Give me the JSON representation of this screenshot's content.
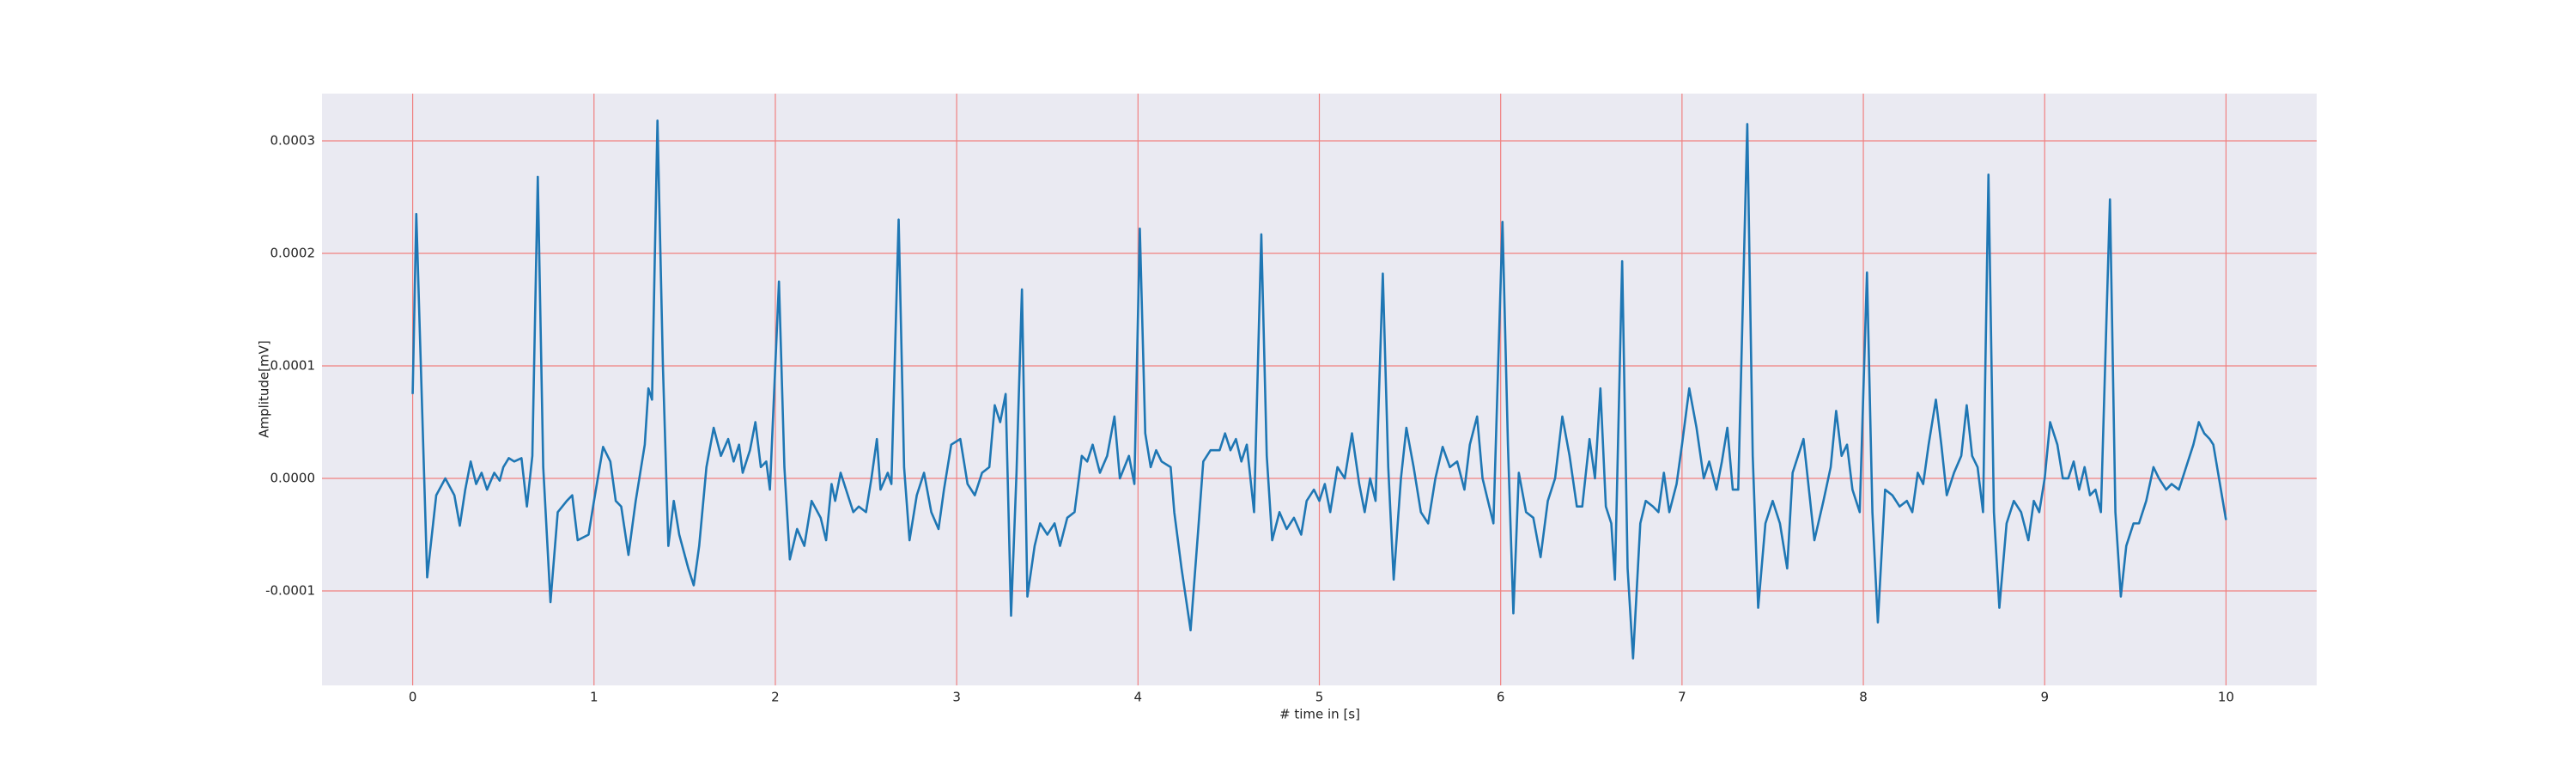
{
  "chart_data": {
    "type": "line",
    "xlabel": "# time in [s]",
    "ylabel": "Amplitude[mV]",
    "color": "#1f77b4",
    "grid": true,
    "grid_color": "#f08080",
    "background": "#eaeaf2",
    "xlim": [
      -0.5,
      10.5
    ],
    "ylim": [
      -0.000184,
      0.000342
    ],
    "xticks": [
      0,
      1,
      2,
      3,
      4,
      5,
      6,
      7,
      8,
      9,
      10
    ],
    "yticks": [
      {
        "value": -0.0001,
        "label": "-0.0001"
      },
      {
        "value": 0,
        "label": "0.0000"
      },
      {
        "value": 0.0001,
        "label": "0.0001"
      },
      {
        "value": 0.0002,
        "label": "0.0002"
      },
      {
        "value": 0.0003,
        "label": "0.0003"
      }
    ],
    "x": [
      0,
      0.02,
      0.08,
      0.13,
      0.18,
      0.23,
      0.26,
      0.29,
      0.32,
      0.35,
      0.38,
      0.41,
      0.45,
      0.48,
      0.5,
      0.53,
      0.56,
      0.6,
      0.63,
      0.66,
      0.69,
      0.72,
      0.76,
      0.8,
      0.85,
      0.88,
      0.91,
      0.97,
      1.0,
      1.05,
      1.09,
      1.12,
      1.15,
      1.19,
      1.23,
      1.28,
      1.3,
      1.32,
      1.35,
      1.38,
      1.41,
      1.44,
      1.47,
      1.52,
      1.55,
      1.58,
      1.62,
      1.66,
      1.7,
      1.74,
      1.77,
      1.8,
      1.82,
      1.86,
      1.89,
      1.92,
      1.95,
      1.97,
      2.02,
      2.05,
      2.08,
      2.12,
      2.16,
      2.2,
      2.25,
      2.28,
      2.31,
      2.33,
      2.36,
      2.4,
      2.43,
      2.46,
      2.5,
      2.53,
      2.56,
      2.58,
      2.62,
      2.64,
      2.68,
      2.71,
      2.74,
      2.78,
      2.82,
      2.86,
      2.9,
      2.93,
      2.97,
      3.02,
      3.06,
      3.1,
      3.14,
      3.18,
      3.21,
      3.24,
      3.27,
      3.3,
      3.33,
      3.36,
      3.39,
      3.43,
      3.46,
      3.5,
      3.54,
      3.57,
      3.61,
      3.65,
      3.69,
      3.72,
      3.75,
      3.79,
      3.83,
      3.87,
      3.9,
      3.95,
      3.98,
      4.01,
      4.04,
      4.07,
      4.1,
      4.13,
      4.18,
      4.2,
      4.24,
      4.29,
      4.33,
      4.36,
      4.4,
      4.45,
      4.48,
      4.51,
      4.54,
      4.57,
      4.6,
      4.64,
      4.68,
      4.71,
      4.74,
      4.78,
      4.82,
      4.86,
      4.9,
      4.93,
      4.97,
      5.0,
      5.03,
      5.06,
      5.1,
      5.14,
      5.18,
      5.22,
      5.25,
      5.28,
      5.31,
      5.35,
      5.38,
      5.41,
      5.45,
      5.48,
      5.52,
      5.56,
      5.6,
      5.64,
      5.68,
      5.72,
      5.76,
      5.8,
      5.83,
      5.87,
      5.9,
      5.93,
      5.96,
      6.01,
      6.04,
      6.07,
      6.1,
      6.14,
      6.18,
      6.22,
      6.26,
      6.3,
      6.34,
      6.38,
      6.42,
      6.45,
      6.49,
      6.52,
      6.55,
      6.58,
      6.61,
      6.63,
      6.67,
      6.7,
      6.73,
      6.77,
      6.8,
      6.84,
      6.87,
      6.9,
      6.93,
      6.97,
      7.0,
      7.04,
      7.08,
      7.12,
      7.15,
      7.19,
      7.22,
      7.25,
      7.28,
      7.31,
      7.36,
      7.39,
      7.42,
      7.46,
      7.5,
      7.54,
      7.58,
      7.61,
      7.64,
      7.67,
      7.7,
      7.73,
      7.78,
      7.82,
      7.85,
      7.88,
      7.91,
      7.94,
      7.98,
      8.02,
      8.05,
      8.08,
      8.12,
      8.16,
      8.2,
      8.24,
      8.27,
      8.3,
      8.33,
      8.36,
      8.4,
      8.43,
      8.46,
      8.5,
      8.54,
      8.57,
      8.6,
      8.63,
      8.66,
      8.69,
      8.72,
      8.75,
      8.79,
      8.83,
      8.87,
      8.91,
      8.94,
      8.97,
      9.0,
      9.03,
      9.07,
      9.1,
      9.13,
      9.16,
      9.19,
      9.22,
      9.25,
      9.28,
      9.31,
      9.36,
      9.39,
      9.42,
      9.45,
      9.49,
      9.52,
      9.56,
      9.6,
      9.63,
      9.67,
      9.7,
      9.74,
      9.78,
      9.82,
      9.85,
      9.88,
      9.91,
      9.93,
      10.0
    ],
    "values": [
      7.5e-05,
      0.000235,
      -8.8e-05,
      -1.5e-05,
      0,
      -1.5e-05,
      -4.2e-05,
      -1e-05,
      1.5e-05,
      -5e-06,
      5e-06,
      -1e-05,
      5e-06,
      -2e-06,
      1e-05,
      1.8e-05,
      1.5e-05,
      1.8e-05,
      -2.5e-05,
      2e-05,
      0.000268,
      1e-05,
      -0.00011,
      -3e-05,
      -2e-05,
      -1.5e-05,
      -5.5e-05,
      -5e-05,
      -2e-05,
      2.8e-05,
      1.5e-05,
      -2e-05,
      -2.5e-05,
      -6.8e-05,
      -2e-05,
      3e-05,
      8e-05,
      7e-05,
      0.000318,
      0.0001,
      -6e-05,
      -2e-05,
      -5e-05,
      -8e-05,
      -9.5e-05,
      -6e-05,
      1e-05,
      4.5e-05,
      2e-05,
      3.5e-05,
      1.5e-05,
      3e-05,
      5e-06,
      2.5e-05,
      5e-05,
      1e-05,
      1.5e-05,
      -1e-05,
      0.000175,
      1e-05,
      -7.2e-05,
      -4.5e-05,
      -6e-05,
      -2e-05,
      -3.5e-05,
      -5.5e-05,
      -5e-06,
      -2e-05,
      5e-06,
      -1.5e-05,
      -3e-05,
      -2.5e-05,
      -3e-05,
      0,
      3.5e-05,
      -1e-05,
      5e-06,
      -5e-06,
      0.00023,
      1e-05,
      -5.5e-05,
      -1.5e-05,
      5e-06,
      -3e-05,
      -4.5e-05,
      -1e-05,
      3e-05,
      3.5e-05,
      -5e-06,
      -1.5e-05,
      5e-06,
      1e-05,
      6.5e-05,
      5e-05,
      7.5e-05,
      -0.000122,
      5e-06,
      0.000168,
      -0.000105,
      -6e-05,
      -4e-05,
      -5e-05,
      -4e-05,
      -6e-05,
      -3.5e-05,
      -3e-05,
      2e-05,
      1.5e-05,
      3e-05,
      5e-06,
      2e-05,
      5.5e-05,
      0,
      2e-05,
      -5e-06,
      0.000222,
      4e-05,
      1e-05,
      2.5e-05,
      1.5e-05,
      1e-05,
      -3e-05,
      -8e-05,
      -0.000135,
      -5e-05,
      1.5e-05,
      2.5e-05,
      2.5e-05,
      4e-05,
      2.5e-05,
      3.5e-05,
      1.5e-05,
      3e-05,
      -3e-05,
      0.000217,
      2e-05,
      -5.5e-05,
      -3e-05,
      -4.5e-05,
      -3.5e-05,
      -5e-05,
      -2e-05,
      -1e-05,
      -2e-05,
      -5e-06,
      -3e-05,
      1e-05,
      0,
      4e-05,
      -5e-06,
      -3e-05,
      0,
      -2e-05,
      0.000182,
      1e-05,
      -9e-05,
      0,
      4.5e-05,
      1e-05,
      -3e-05,
      -4e-05,
      0,
      2.8e-05,
      1e-05,
      1.5e-05,
      -1e-05,
      3e-05,
      5.5e-05,
      0,
      -2e-05,
      -4e-05,
      0.000228,
      3e-05,
      -0.00012,
      5e-06,
      -3e-05,
      -3.5e-05,
      -7e-05,
      -2e-05,
      0,
      5.5e-05,
      2e-05,
      -2.5e-05,
      -2.5e-05,
      3.5e-05,
      0,
      8e-05,
      -2.5e-05,
      -4e-05,
      -9e-05,
      0.000193,
      -8e-05,
      -0.00016,
      -4e-05,
      -2e-05,
      -2.5e-05,
      -3e-05,
      5e-06,
      -3e-05,
      -5e-06,
      3e-05,
      8e-05,
      4.5e-05,
      0,
      1.5e-05,
      -1e-05,
      1.5e-05,
      4.5e-05,
      -1e-05,
      -1e-05,
      0.000315,
      2e-05,
      -0.000115,
      -4e-05,
      -2e-05,
      -4e-05,
      -8e-05,
      5e-06,
      2e-05,
      3.5e-05,
      -1e-05,
      -5.5e-05,
      -2e-05,
      1e-05,
      6e-05,
      2e-05,
      3e-05,
      -1e-05,
      -3e-05,
      0.000183,
      -3e-05,
      -0.000128,
      -1e-05,
      -1.5e-05,
      -2.5e-05,
      -2e-05,
      -3e-05,
      5e-06,
      -5e-06,
      3e-05,
      7e-05,
      3e-05,
      -1.5e-05,
      5e-06,
      2e-05,
      6.5e-05,
      2e-05,
      1e-05,
      -3e-05,
      0.00027,
      -3e-05,
      -0.000115,
      -4e-05,
      -2e-05,
      -3e-05,
      -5.5e-05,
      -2e-05,
      -3e-05,
      0,
      5e-05,
      3e-05,
      0,
      0,
      1.5e-05,
      -1e-05,
      1e-05,
      -1.5e-05,
      -1e-05,
      -3e-05,
      0.000248,
      -3e-05,
      -0.000105,
      -6e-05,
      -4e-05,
      -4e-05,
      -2e-05,
      1e-05,
      0,
      -1e-05,
      -5e-06,
      -1e-05,
      1e-05,
      3e-05,
      5e-05,
      4e-05,
      3.5e-05,
      3e-05,
      -3.7e-05
    ]
  }
}
